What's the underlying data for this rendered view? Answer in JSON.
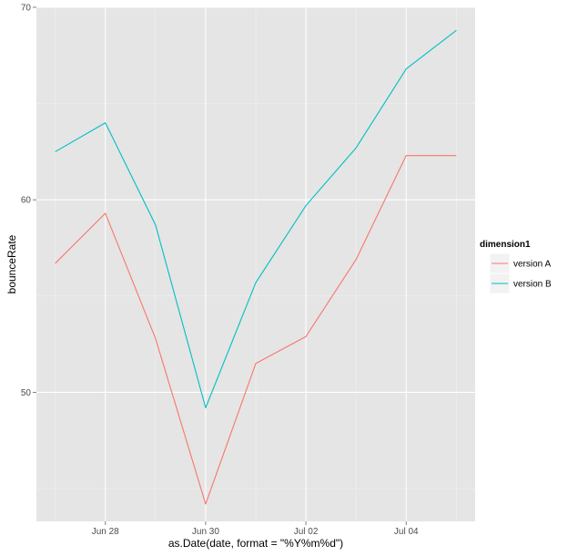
{
  "chart_data": {
    "type": "line",
    "title": "",
    "xlabel": "as.Date(date, format = \"%Y%m%d\")",
    "ylabel": "bounceRate",
    "x": [
      "2014-06-27",
      "2014-06-28",
      "2014-06-29",
      "2014-06-30",
      "2014-07-01",
      "2014-07-02",
      "2014-07-03",
      "2014-07-04",
      "2014-07-05"
    ],
    "xlim": [
      "2014-06-26T15:00",
      "2014-07-05T09:00"
    ],
    "ylim": [
      43.3,
      70.0
    ],
    "x_ticks": [
      {
        "date": "2014-06-28",
        "label": "Jun 28"
      },
      {
        "date": "2014-06-30",
        "label": "Jun 30"
      },
      {
        "date": "2014-07-02",
        "label": "Jul 02"
      },
      {
        "date": "2014-07-04",
        "label": "Jul 04"
      }
    ],
    "y_ticks": [
      50,
      60,
      70
    ],
    "grid": true,
    "legend": {
      "title": "dimension1",
      "position": "right"
    },
    "series": [
      {
        "name": "version A",
        "color": "#F8766D",
        "values": [
          56.7,
          59.3,
          52.8,
          44.2,
          51.5,
          52.9,
          56.9,
          62.3,
          62.3
        ]
      },
      {
        "name": "version B",
        "color": "#00BFC4",
        "values": [
          62.5,
          64.0,
          58.7,
          49.2,
          55.7,
          59.7,
          62.7,
          66.8,
          68.8
        ]
      }
    ]
  }
}
